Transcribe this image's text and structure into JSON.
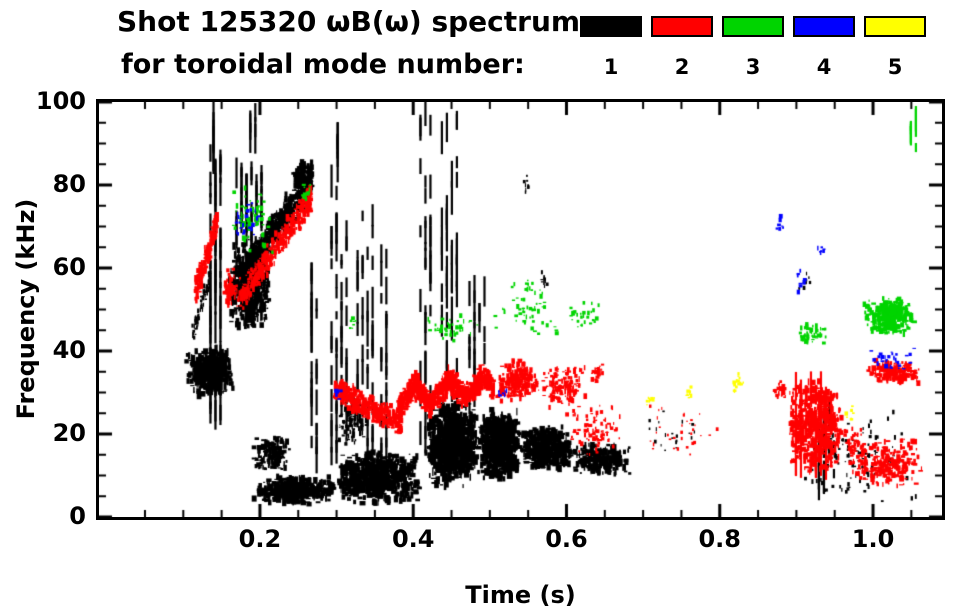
{
  "header": {
    "title": "Shot 125320 ωB(ω) spectrum",
    "subtitle": "for toroidal mode number:",
    "legend": [
      {
        "mode": "1",
        "color": "#000000"
      },
      {
        "mode": "2",
        "color": "#ff0000"
      },
      {
        "mode": "3",
        "color": "#00d400"
      },
      {
        "mode": "4",
        "color": "#0000ff"
      },
      {
        "mode": "5",
        "color": "#ffff00"
      }
    ]
  },
  "chart_data": {
    "type": "scatter",
    "title": "Shot 125320 ωB(ω) spectrum for toroidal mode number",
    "xlabel": "Time (s)",
    "ylabel": "Frequency (kHz)",
    "xlim": [
      -0.01,
      1.09
    ],
    "ylim": [
      0,
      100
    ],
    "x_ticks": [
      0.2,
      0.4,
      0.6,
      0.8,
      1.0
    ],
    "x_tick_labels": [
      "0.2",
      "0.4",
      "0.6",
      "0.8",
      "1.0"
    ],
    "x_minor_step": 0.05,
    "y_ticks": [
      0,
      20,
      40,
      60,
      80,
      100
    ],
    "y_tick_labels": [
      "0",
      "20",
      "40",
      "60",
      "80",
      "100"
    ],
    "y_minor_step": 5,
    "grid": false,
    "legend_position": "top-right",
    "modes": [
      {
        "mode": 1,
        "label": "1",
        "color": "#000000"
      },
      {
        "mode": 2,
        "label": "2",
        "color": "#ff0000"
      },
      {
        "mode": 3,
        "label": "3",
        "color": "#00d400"
      },
      {
        "mode": 4,
        "label": "4",
        "color": "#0000ff"
      },
      {
        "mode": 5,
        "label": "5",
        "color": "#ffff00"
      }
    ],
    "mode_colors": {
      "1": "#000000",
      "2": "#ff0000",
      "3": "#00d400",
      "4": "#0000ff",
      "5": "#ffff00"
    },
    "clusters": [
      {
        "m": 1,
        "sh": "blob",
        "t": [
          0.103,
          0.167
        ],
        "f": [
          29,
          41
        ],
        "n": 520,
        "dw": 4,
        "dh": 7
      },
      {
        "m": 1,
        "sh": "diag",
        "t": [
          0.112,
          0.135
        ],
        "f": [
          44,
          58
        ],
        "sp": 3,
        "n": 60,
        "dw": 2,
        "dh": 5
      },
      {
        "m": 1,
        "sh": "vstreak",
        "t": [
          0.134,
          0.155
        ],
        "f": [
          24,
          88
        ],
        "n": 70
      },
      {
        "m": 1,
        "sh": "vstreak",
        "t": [
          0.138,
          0.146
        ],
        "f": [
          84,
          97
        ],
        "n": 10
      },
      {
        "m": 1,
        "sh": "blob",
        "t": [
          0.16,
          0.214
        ],
        "f": [
          45,
          67
        ],
        "n": 650,
        "dw": 4,
        "dh": 8
      },
      {
        "m": 1,
        "sh": "vstreak",
        "t": [
          0.168,
          0.206
        ],
        "f": [
          66,
          85
        ],
        "n": 45
      },
      {
        "m": 1,
        "sh": "diag",
        "t": [
          0.175,
          0.268
        ],
        "f": [
          57,
          82
        ],
        "sp": 5,
        "n": 550,
        "dw": 4,
        "dh": 6
      },
      {
        "m": 1,
        "sh": "blob",
        "t": [
          0.243,
          0.271
        ],
        "f": [
          76,
          86
        ],
        "n": 130,
        "dw": 4,
        "dh": 6
      },
      {
        "m": 1,
        "sh": "blob",
        "t": [
          0.191,
          0.24
        ],
        "f": [
          11,
          20
        ],
        "n": 150,
        "dw": 4,
        "dh": 6
      },
      {
        "m": 1,
        "sh": "blob",
        "t": [
          0.191,
          0.3
        ],
        "f": [
          3,
          10
        ],
        "n": 500,
        "dw": 5,
        "dh": 6
      },
      {
        "m": 1,
        "sh": "vstreak",
        "t": [
          0.266,
          0.282
        ],
        "f": [
          10,
          60
        ],
        "n": 25
      },
      {
        "m": 1,
        "sh": "vstreak",
        "t": [
          0.292,
          0.316
        ],
        "f": [
          10,
          82
        ],
        "n": 55
      },
      {
        "m": 1,
        "sh": "vstreak",
        "t": [
          0.3,
          0.309
        ],
        "f": [
          80,
          96
        ],
        "n": 8
      },
      {
        "m": 1,
        "sh": "blob",
        "t": [
          0.3,
          0.412
        ],
        "f": [
          3,
          16
        ],
        "n": 700,
        "dw": 5,
        "dh": 7
      },
      {
        "m": 1,
        "sh": "vstreak",
        "t": [
          0.326,
          0.35
        ],
        "f": [
          14,
          73
        ],
        "n": 40
      },
      {
        "m": 1,
        "sh": "vstreak",
        "t": [
          0.357,
          0.372
        ],
        "f": [
          16,
          64
        ],
        "n": 22
      },
      {
        "m": 1,
        "sh": "blob",
        "t": [
          0.3,
          0.34
        ],
        "f": [
          16,
          30
        ],
        "n": 90,
        "dw": 3,
        "dh": 5
      },
      {
        "m": 1,
        "sh": "vstreak",
        "t": [
          0.408,
          0.426
        ],
        "f": [
          18,
          99
        ],
        "n": 35
      },
      {
        "m": 1,
        "sh": "blob",
        "t": [
          0.416,
          0.486
        ],
        "f": [
          7,
          28
        ],
        "n": 850,
        "dw": 5,
        "dh": 8
      },
      {
        "m": 1,
        "sh": "vstreak",
        "t": [
          0.436,
          0.463
        ],
        "f": [
          28,
          96
        ],
        "n": 45
      },
      {
        "m": 1,
        "sh": "blob",
        "t": [
          0.486,
          0.54
        ],
        "f": [
          9,
          26
        ],
        "n": 650,
        "dw": 5,
        "dh": 8
      },
      {
        "m": 1,
        "sh": "vstreak",
        "t": [
          0.472,
          0.5
        ],
        "f": [
          26,
          55
        ],
        "n": 20
      },
      {
        "m": 1,
        "sh": "blob",
        "t": [
          0.54,
          0.607
        ],
        "f": [
          11,
          22
        ],
        "n": 430,
        "dw": 5,
        "dh": 7
      },
      {
        "m": 1,
        "sh": "blob",
        "t": [
          0.607,
          0.685
        ],
        "f": [
          10,
          18
        ],
        "n": 280,
        "dw": 4,
        "dh": 6
      },
      {
        "m": 1,
        "sh": "blob",
        "t": [
          0.542,
          0.552
        ],
        "f": [
          78,
          83
        ],
        "n": 8,
        "dw": 2,
        "dh": 4
      },
      {
        "m": 1,
        "sh": "blob",
        "t": [
          0.566,
          0.578
        ],
        "f": [
          55,
          60
        ],
        "n": 10,
        "dw": 2,
        "dh": 4
      },
      {
        "m": 1,
        "sh": "blob",
        "t": [
          0.69,
          0.78
        ],
        "f": [
          14,
          26
        ],
        "n": 20,
        "dw": 2,
        "dh": 3
      },
      {
        "m": 1,
        "sh": "blob",
        "t": [
          0.888,
          1.065
        ],
        "f": [
          3,
          26
        ],
        "n": 110,
        "dw": 2,
        "dh": 4
      },
      {
        "m": 1,
        "sh": "vstreak",
        "t": [
          0.928,
          0.952
        ],
        "f": [
          5,
          26
        ],
        "n": 18
      },
      {
        "m": 1,
        "sh": "blob",
        "t": [
          0.9,
          0.92
        ],
        "f": [
          55,
          60
        ],
        "n": 10,
        "dw": 2,
        "dh": 4
      },
      {
        "m": 1,
        "sh": "vstreak",
        "t": [
          0.186,
          0.196
        ],
        "f": [
          89,
          99
        ],
        "n": 6
      },
      {
        "m": 2,
        "sh": "diag",
        "t": [
          0.115,
          0.145
        ],
        "f": [
          54,
          71
        ],
        "sp": 4,
        "n": 170,
        "dw": 3,
        "dh": 6
      },
      {
        "m": 2,
        "sh": "diag",
        "t": [
          0.175,
          0.268
        ],
        "f": [
          53,
          77
        ],
        "sp": 4,
        "n": 380,
        "dw": 3,
        "dh": 6
      },
      {
        "m": 2,
        "sh": "blob",
        "t": [
          0.15,
          0.176
        ],
        "f": [
          50,
          60
        ],
        "n": 70,
        "dw": 3,
        "dh": 5
      },
      {
        "m": 2,
        "sh": "diag",
        "t": [
          0.298,
          0.385
        ],
        "f": [
          31,
          22
        ],
        "sp": 3.5,
        "n": 340,
        "dw": 4,
        "dh": 6
      },
      {
        "m": 2,
        "sh": "diag",
        "t": [
          0.381,
          0.402
        ],
        "f": [
          26,
          32
        ],
        "sp": 3.5,
        "n": 150,
        "dw": 4,
        "dh": 6
      },
      {
        "m": 2,
        "sh": "diag",
        "t": [
          0.402,
          0.422
        ],
        "f": [
          32,
          27
        ],
        "sp": 3.5,
        "n": 150,
        "dw": 4,
        "dh": 6
      },
      {
        "m": 2,
        "sh": "diag",
        "t": [
          0.422,
          0.447
        ],
        "f": [
          27,
          33
        ],
        "sp": 3.5,
        "n": 170,
        "dw": 4,
        "dh": 6
      },
      {
        "m": 2,
        "sh": "diag",
        "t": [
          0.447,
          0.467
        ],
        "f": [
          33,
          29
        ],
        "sp": 3.5,
        "n": 140,
        "dw": 4,
        "dh": 6
      },
      {
        "m": 2,
        "sh": "diag",
        "t": [
          0.467,
          0.492
        ],
        "f": [
          29,
          34
        ],
        "sp": 3.5,
        "n": 150,
        "dw": 4,
        "dh": 6
      },
      {
        "m": 2,
        "sh": "diag",
        "t": [
          0.492,
          0.505
        ],
        "f": [
          34,
          31
        ],
        "sp": 3,
        "n": 80,
        "dw": 4,
        "dh": 6
      },
      {
        "m": 2,
        "sh": "blob",
        "t": [
          0.505,
          0.566
        ],
        "f": [
          27,
          38
        ],
        "n": 210,
        "dw": 4,
        "dh": 5
      },
      {
        "m": 2,
        "sh": "blob",
        "t": [
          0.566,
          0.628
        ],
        "f": [
          26,
          37
        ],
        "n": 150,
        "dw": 3,
        "dh": 5
      },
      {
        "m": 2,
        "sh": "blob",
        "t": [
          0.6,
          0.676
        ],
        "f": [
          14,
          27
        ],
        "n": 90,
        "dw": 3,
        "dh": 4
      },
      {
        "m": 2,
        "sh": "blob",
        "t": [
          0.632,
          0.65
        ],
        "f": [
          32,
          37
        ],
        "n": 25,
        "dw": 3,
        "dh": 4
      },
      {
        "m": 2,
        "sh": "blob",
        "t": [
          0.695,
          0.8
        ],
        "f": [
          13,
          28
        ],
        "n": 35,
        "dw": 2,
        "dh": 3
      },
      {
        "m": 2,
        "sh": "blob",
        "t": [
          0.888,
          0.96
        ],
        "f": [
          10,
          34
        ],
        "n": 520,
        "dw": 4,
        "dh": 6
      },
      {
        "m": 2,
        "sh": "vstreak",
        "t": [
          0.898,
          0.95
        ],
        "f": [
          12,
          33
        ],
        "n": 50
      },
      {
        "m": 2,
        "sh": "blob",
        "t": [
          0.973,
          1.065
        ],
        "f": [
          7,
          19
        ],
        "n": 230,
        "dw": 4,
        "dh": 5
      },
      {
        "m": 2,
        "sh": "blob",
        "t": [
          0.992,
          1.065
        ],
        "f": [
          32,
          38
        ],
        "n": 190,
        "dw": 4,
        "dh": 5
      },
      {
        "m": 2,
        "sh": "blob",
        "t": [
          0.96,
          0.992
        ],
        "f": [
          12,
          22
        ],
        "n": 60,
        "dw": 3,
        "dh": 4
      },
      {
        "m": 2,
        "sh": "blob",
        "t": [
          0.87,
          0.89
        ],
        "f": [
          28,
          33
        ],
        "n": 25,
        "dw": 3,
        "dh": 4
      },
      {
        "m": 3,
        "sh": "blob",
        "t": [
          0.16,
          0.218
        ],
        "f": [
          62,
          82
        ],
        "n": 60,
        "dw": 3,
        "dh": 5
      },
      {
        "m": 3,
        "sh": "blob",
        "t": [
          0.255,
          0.268
        ],
        "f": [
          76,
          81
        ],
        "n": 10,
        "dw": 3,
        "dh": 4
      },
      {
        "m": 3,
        "sh": "blob",
        "t": [
          0.315,
          0.325
        ],
        "f": [
          45,
          49
        ],
        "n": 8,
        "dw": 3,
        "dh": 4
      },
      {
        "m": 3,
        "sh": "blob",
        "t": [
          0.416,
          0.488
        ],
        "f": [
          41,
          50
        ],
        "n": 40,
        "dw": 3,
        "dh": 4
      },
      {
        "m": 3,
        "sh": "blob",
        "t": [
          0.5,
          0.59
        ],
        "f": [
          43,
          57
        ],
        "n": 50,
        "dw": 3,
        "dh": 4
      },
      {
        "m": 3,
        "sh": "blob",
        "t": [
          0.597,
          0.645
        ],
        "f": [
          44,
          52
        ],
        "n": 28,
        "dw": 3,
        "dh": 4
      },
      {
        "m": 3,
        "sh": "blob",
        "t": [
          0.895,
          0.94
        ],
        "f": [
          41,
          47
        ],
        "n": 50,
        "dw": 3,
        "dh": 5
      },
      {
        "m": 3,
        "sh": "blob",
        "t": [
          0.986,
          1.058
        ],
        "f": [
          44,
          53
        ],
        "n": 300,
        "dw": 4,
        "dh": 6
      },
      {
        "m": 3,
        "sh": "vstreak",
        "t": [
          1.048,
          1.06
        ],
        "f": [
          89,
          96
        ],
        "n": 8
      },
      {
        "m": 3,
        "sh": "blob",
        "t": [
          0.545,
          0.56
        ],
        "f": [
          53,
          58
        ],
        "n": 10,
        "dw": 2,
        "dh": 4
      },
      {
        "m": 4,
        "sh": "blob",
        "t": [
          0.163,
          0.2
        ],
        "f": [
          67,
          76
        ],
        "n": 28,
        "dw": 3,
        "dh": 4
      },
      {
        "m": 4,
        "sh": "blob",
        "t": [
          0.298,
          0.308
        ],
        "f": [
          28,
          32
        ],
        "n": 7,
        "dw": 3,
        "dh": 4
      },
      {
        "m": 4,
        "sh": "blob",
        "t": [
          0.51,
          0.522
        ],
        "f": [
          28,
          32
        ],
        "n": 7,
        "dw": 3,
        "dh": 4
      },
      {
        "m": 4,
        "sh": "blob",
        "t": [
          0.872,
          0.884
        ],
        "f": [
          69,
          73
        ],
        "n": 7,
        "dw": 3,
        "dh": 4
      },
      {
        "m": 4,
        "sh": "blob",
        "t": [
          0.898,
          0.912
        ],
        "f": [
          54,
          60
        ],
        "n": 9,
        "dw": 3,
        "dh": 4
      },
      {
        "m": 4,
        "sh": "blob",
        "t": [
          0.927,
          0.94
        ],
        "f": [
          62,
          66
        ],
        "n": 7,
        "dw": 3,
        "dh": 4
      },
      {
        "m": 4,
        "sh": "blob",
        "t": [
          0.993,
          1.056
        ],
        "f": [
          35,
          41
        ],
        "n": 32,
        "dw": 3,
        "dh": 4
      },
      {
        "m": 5,
        "sh": "blob",
        "t": [
          0.7,
          0.714
        ],
        "f": [
          26,
          30
        ],
        "n": 9,
        "dw": 3,
        "dh": 4
      },
      {
        "m": 5,
        "sh": "blob",
        "t": [
          0.752,
          0.764
        ],
        "f": [
          28,
          32
        ],
        "n": 8,
        "dw": 3,
        "dh": 4
      },
      {
        "m": 5,
        "sh": "blob",
        "t": [
          0.81,
          0.834
        ],
        "f": [
          29,
          35
        ],
        "n": 14,
        "dw": 3,
        "dh": 4
      },
      {
        "m": 5,
        "sh": "blob",
        "t": [
          0.962,
          0.976
        ],
        "f": [
          23,
          27
        ],
        "n": 8,
        "dw": 3,
        "dh": 4
      }
    ]
  }
}
